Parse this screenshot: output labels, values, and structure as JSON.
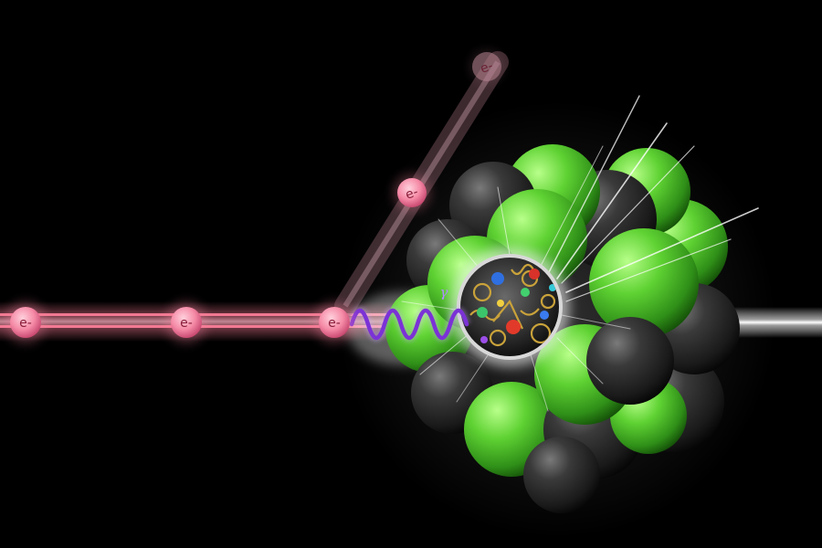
{
  "illustration": {
    "incoming_electron_labels": [
      "e-",
      "e-",
      "e-"
    ],
    "scattered_electron_labels": [
      "e-",
      "e-"
    ],
    "photon_label": "γ",
    "colors": {
      "background": "#000000",
      "electron": "#f06a8e",
      "beam": "#ff6f8c",
      "proton": "#4cc52a",
      "neutron": "#2a2a2a",
      "photon": "#7b32d6",
      "exit_beam": "#e0e0e0"
    }
  }
}
